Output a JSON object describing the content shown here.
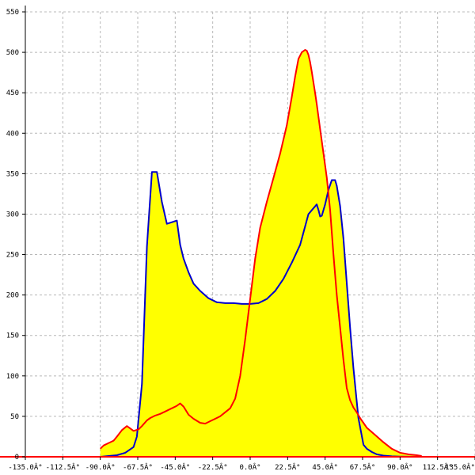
{
  "chart_data": {
    "type": "area",
    "title": "",
    "xlabel": "",
    "ylabel": "",
    "xlim": [
      -135,
      135
    ],
    "ylim": [
      0,
      550
    ],
    "grid": true,
    "x_ticks": [
      -135,
      -112.5,
      -90,
      -67.5,
      -45,
      -22.5,
      0,
      22.5,
      45,
      67.5,
      90,
      112.5,
      135
    ],
    "x_tick_labels": [
      "-135.0Â°",
      "-112.5Â°",
      "-90.0Â°",
      "-67.5Â°",
      "-45.0Â°",
      "-22.5Â°",
      "0.0Â°",
      "22.5Â°",
      "45.0Â°",
      "67.5Â°",
      "90.0Â°",
      "112.5Â°",
      "135.0Â°"
    ],
    "y_ticks": [
      0,
      50,
      100,
      150,
      200,
      250,
      300,
      350,
      400,
      450,
      500,
      550
    ],
    "y_tick_labels": [
      "0",
      "50",
      "100",
      "150",
      "200",
      "250",
      "300",
      "350",
      "400",
      "450",
      "500",
      "550"
    ],
    "series": [
      {
        "color": "#0000cc",
        "fill": "#ffff00",
        "x": [
          -90,
          -85,
          -80,
          -75,
          -70,
          -68,
          -65,
          -62,
          -59,
          -56,
          -53,
          -50,
          -47,
          -44,
          -42,
          -40,
          -37,
          -34,
          -30,
          -25,
          -20,
          -15,
          -10,
          -5,
          0,
          5,
          10,
          15,
          20,
          25,
          30,
          35,
          40,
          41,
          42,
          43,
          45,
          47,
          49,
          51,
          52,
          54,
          56,
          58,
          60,
          62,
          65,
          68,
          70,
          73,
          76,
          80,
          85,
          90,
          95,
          100,
          103
        ],
        "y": [
          0,
          1,
          2,
          5,
          12,
          25,
          90,
          260,
          352,
          352,
          315,
          288,
          290,
          292,
          262,
          245,
          228,
          214,
          205,
          196,
          191,
          190,
          190,
          189,
          189,
          190,
          195,
          205,
          220,
          240,
          262,
          300,
          312,
          305,
          297,
          298,
          312,
          330,
          342,
          342,
          335,
          310,
          270,
          215,
          160,
          110,
          48,
          15,
          10,
          6,
          3,
          1.5,
          0.6,
          0.3,
          0.1,
          0,
          0
        ]
      },
      {
        "color": "#ff0000",
        "fill": "#ffff00",
        "x": [
          -90,
          -88,
          -85,
          -82,
          -80,
          -77,
          -74,
          -72,
          -70,
          -67,
          -65,
          -62,
          -60,
          -57,
          -54,
          -51,
          -48,
          -46,
          -44,
          -42,
          -40,
          -37,
          -34,
          -30,
          -27,
          -24,
          -21,
          -18,
          -15,
          -12,
          -9,
          -6,
          -3,
          0,
          3,
          6,
          10,
          14,
          18,
          22,
          25,
          27,
          29,
          31,
          33,
          34,
          35,
          36,
          37,
          38,
          39,
          40,
          42,
          44,
          46,
          48,
          50,
          52,
          54,
          56,
          58,
          60,
          62,
          64,
          66,
          70,
          75,
          80,
          85,
          90,
          95,
          100,
          103
        ],
        "y": [
          10,
          14,
          17,
          20,
          25,
          33,
          38,
          35,
          32,
          34,
          38,
          45,
          48,
          51,
          53,
          56,
          59,
          61,
          63,
          66,
          62,
          52,
          47,
          42,
          41,
          44,
          47,
          50,
          55,
          60,
          72,
          100,
          145,
          195,
          245,
          283,
          315,
          345,
          375,
          410,
          445,
          470,
          492,
          500,
          503,
          502,
          497,
          488,
          476,
          463,
          450,
          436,
          405,
          375,
          345,
          305,
          250,
          200,
          160,
          120,
          85,
          70,
          61,
          55,
          48,
          36,
          27,
          18,
          10,
          5,
          3,
          2,
          1
        ]
      }
    ]
  }
}
